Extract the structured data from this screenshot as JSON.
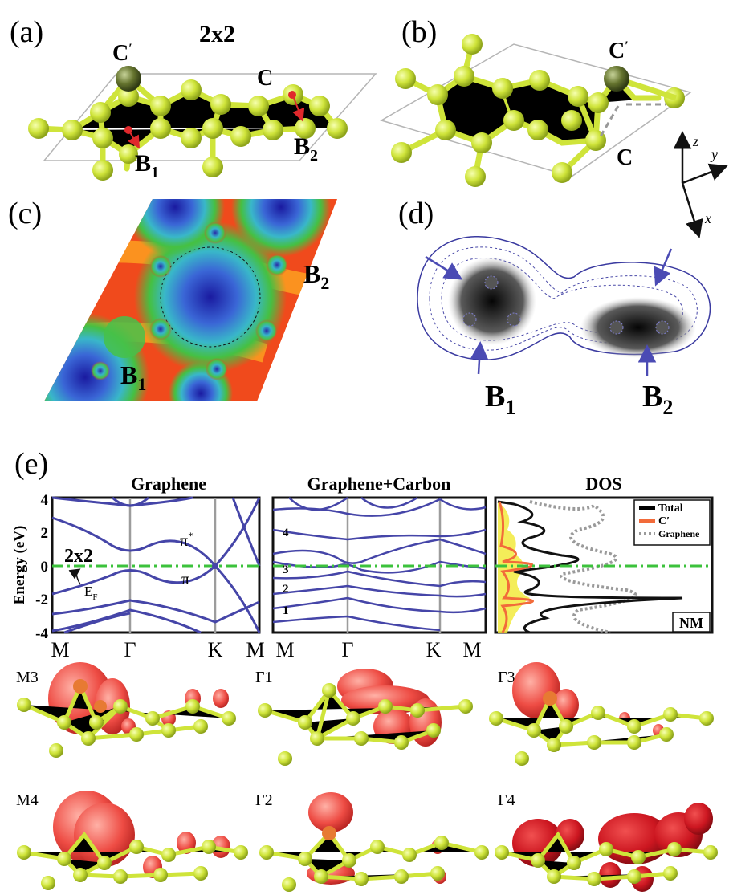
{
  "panels": {
    "a": {
      "letter": "(a)",
      "cell": "2x2",
      "atom_c_prime": "C",
      "prime_mark": "′",
      "atom_c": "C",
      "b1_main": "B",
      "b1_sub": "1",
      "b2_main": "B",
      "b2_sub": "2"
    },
    "b": {
      "letter": "(b)",
      "atom_c_prime": "C",
      "prime_mark": "′",
      "atom_c": "C"
    },
    "axes": {
      "z": "z",
      "y": "y",
      "x": "x"
    },
    "c": {
      "letter": "(c)",
      "b1_main": "B",
      "b1_sub": "1",
      "b2_main": "B",
      "b2_sub": "2"
    },
    "d": {
      "letter": "(d)",
      "b1_main": "B",
      "b1_sub": "1",
      "b2_main": "B",
      "b2_sub": "2"
    },
    "e": {
      "letter": "(e)"
    }
  },
  "bands_graphene": {
    "title": "Graphene",
    "ylabel": "Energy (eV)",
    "yticks": [
      "4",
      "2",
      "0",
      "-2",
      "-4"
    ],
    "kpoints": [
      "M",
      "Γ",
      "K",
      "M"
    ],
    "cell_label": "2x2",
    "pi_star": "π",
    "pi_star_sup": "*",
    "pi": "π",
    "ef_main": "E",
    "ef_sub": "F"
  },
  "bands_carbon": {
    "title": "Graphene+Carbon",
    "kpoints": [
      "M",
      "Γ",
      "K",
      "M"
    ],
    "band_labels": [
      "4",
      "3",
      "2",
      "1"
    ]
  },
  "dos": {
    "title": "DOS",
    "legend": [
      {
        "label": "Total",
        "color": "#000000",
        "style": "solid"
      },
      {
        "label": "C′",
        "color": "#f26b3a",
        "style": "solid"
      },
      {
        "label": "Graphene",
        "color": "#9a9a9a",
        "style": "dotted"
      }
    ],
    "tag": "NM"
  },
  "orbitals": [
    {
      "label": "M3"
    },
    {
      "label": "Γ1"
    },
    {
      "label": "Γ3"
    },
    {
      "label": "M4"
    },
    {
      "label": "Γ2"
    },
    {
      "label": "Γ4"
    }
  ],
  "colors": {
    "atom": "#cfe43a",
    "atom_dark": "#8da31a",
    "adatom": "#5b6a2a",
    "band": "#4545a8",
    "fermi": "#3cc23c",
    "arrow": "#e0282c",
    "lobe": "#e8443f"
  }
}
